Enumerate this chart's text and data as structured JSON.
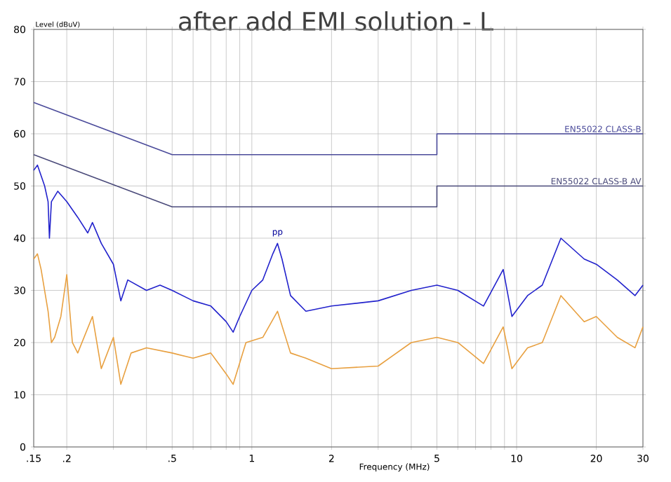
{
  "chart_data": {
    "type": "line",
    "title": "after add EMI solution - L",
    "xlabel": "Frequency (MHz)",
    "ylabel": "Level (dBuV)",
    "log": "x",
    "grid": true,
    "xlim": [
      0.15,
      30
    ],
    "ylim": [
      0,
      80
    ],
    "xticks": [
      {
        "value": 0.15,
        "label": ".15"
      },
      {
        "value": 0.2,
        "label": ".2"
      },
      {
        "value": 0.3,
        "label": null
      },
      {
        "value": 0.4,
        "label": null
      },
      {
        "value": 0.5,
        "label": ".5"
      },
      {
        "value": 0.6,
        "label": null
      },
      {
        "value": 0.7,
        "label": null
      },
      {
        "value": 0.8,
        "label": null
      },
      {
        "value": 0.9,
        "label": null
      },
      1,
      2,
      {
        "value": 3,
        "label": null
      },
      {
        "value": 4,
        "label": null
      },
      5,
      {
        "value": 6,
        "label": null
      },
      {
        "value": 7,
        "label": null
      },
      {
        "value": 8,
        "label": null
      },
      {
        "value": 9,
        "label": null
      },
      10,
      20,
      30
    ],
    "yticks": [
      0,
      10,
      20,
      30,
      40,
      50,
      60,
      70,
      80
    ],
    "annotations": [
      {
        "text": "pp",
        "x": 1.25,
        "y": 40
      }
    ],
    "series": [
      {
        "name": "EN55022 CLASS-B",
        "color": "#4a4a9a",
        "x": [
          0.15,
          0.5,
          0.5,
          5,
          5,
          30
        ],
        "values": [
          66,
          56,
          56,
          56,
          60,
          60
        ]
      },
      {
        "name": "EN55022 CLASS-B AV",
        "color": "#4a4a7a",
        "x": [
          0.15,
          0.5,
          0.5,
          5,
          5,
          30
        ],
        "values": [
          56,
          46,
          46,
          46,
          50,
          50
        ]
      },
      {
        "color": "#2222cc",
        "x": [
          0.15,
          0.155,
          0.165,
          0.17,
          0.172,
          0.175,
          0.185,
          0.2,
          0.22,
          0.24,
          0.25,
          0.27,
          0.3,
          0.32,
          0.34,
          0.4,
          0.45,
          0.5,
          0.6,
          0.7,
          0.8,
          0.85,
          0.9,
          1.0,
          1.1,
          1.2,
          1.25,
          1.3,
          1.4,
          1.6,
          2,
          3,
          4,
          5,
          6,
          7.5,
          8.9,
          9.6,
          11,
          12.5,
          14.7,
          18,
          20,
          24,
          28,
          30
        ],
        "values": [
          53,
          54,
          50,
          47,
          40,
          47,
          49,
          47,
          44,
          41,
          43,
          39,
          35,
          28,
          32,
          30,
          31,
          30,
          28,
          27,
          24,
          22,
          25,
          30,
          32,
          37,
          39,
          36,
          29,
          26,
          27,
          28,
          30,
          31,
          30,
          27,
          34,
          25,
          29,
          31,
          40,
          36,
          35,
          32,
          29,
          31
        ]
      },
      {
        "color": "#e8a040",
        "x": [
          0.15,
          0.155,
          0.16,
          0.17,
          0.175,
          0.18,
          0.19,
          0.2,
          0.21,
          0.22,
          0.25,
          0.27,
          0.3,
          0.32,
          0.35,
          0.4,
          0.5,
          0.6,
          0.7,
          0.8,
          0.85,
          0.95,
          1.1,
          1.25,
          1.4,
          1.6,
          2,
          3,
          4,
          5,
          6,
          7.5,
          8.9,
          9.6,
          11,
          12.5,
          14.7,
          18,
          20,
          24,
          28,
          30
        ],
        "values": [
          36,
          37,
          34,
          26,
          20,
          21,
          25,
          33,
          20,
          18,
          25,
          15,
          21,
          12,
          18,
          19,
          18,
          17,
          18,
          14,
          12,
          20,
          21,
          26,
          18,
          17,
          15,
          15.5,
          20,
          21,
          20,
          16,
          23,
          15,
          19,
          20,
          29,
          24,
          25,
          21,
          19,
          23
        ]
      }
    ]
  }
}
